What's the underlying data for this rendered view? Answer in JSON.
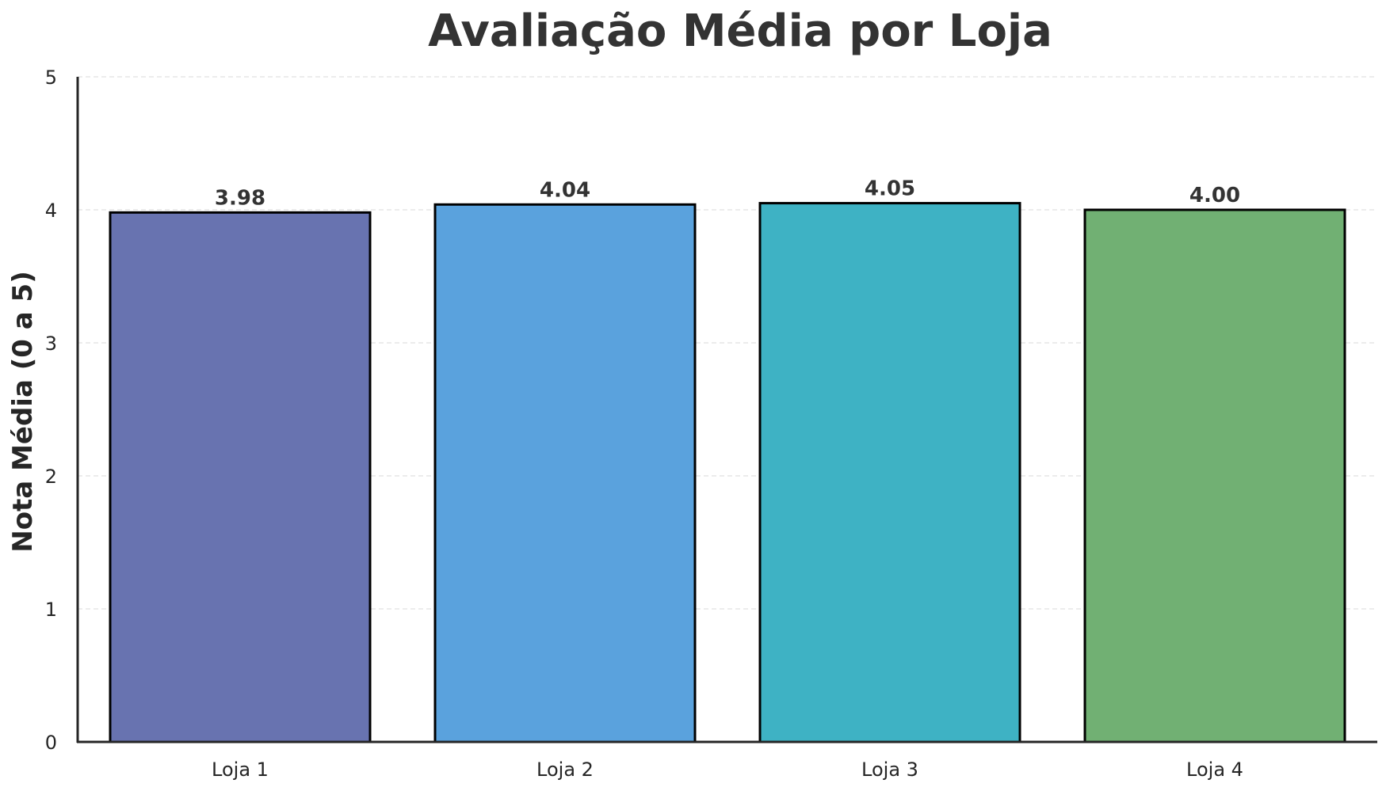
{
  "chart_data": {
    "type": "bar",
    "title": "Avaliação Média por Loja",
    "xlabel": "",
    "ylabel": "Nota Média (0 a 5)",
    "categories": [
      "Loja 1",
      "Loja 2",
      "Loja 3",
      "Loja 4"
    ],
    "values": [
      3.98,
      4.04,
      4.05,
      4.0
    ],
    "value_labels": [
      "3.98",
      "4.04",
      "4.05",
      "4.00"
    ],
    "colors": [
      "#6873b0",
      "#5aa2dd",
      "#3eb2c4",
      "#71b073"
    ],
    "ylim": [
      0,
      5
    ],
    "yticks": [
      "0",
      "1",
      "2",
      "3",
      "4",
      "5"
    ],
    "grid": true,
    "legend": "none"
  }
}
